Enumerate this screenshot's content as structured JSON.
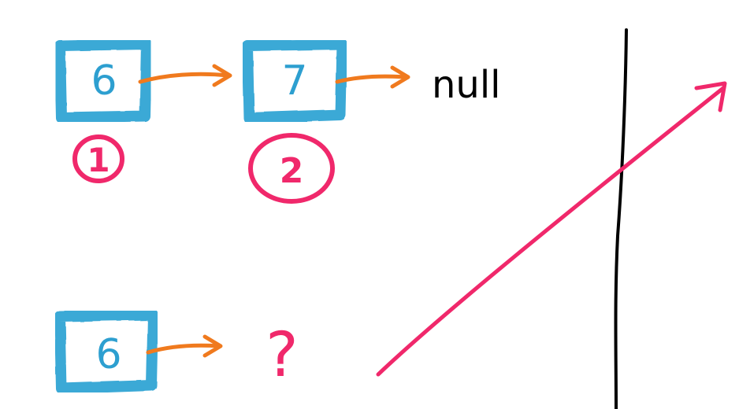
{
  "diagram": {
    "nodes": [
      {
        "id": "node-a",
        "value": "6",
        "step": "1"
      },
      {
        "id": "node-b",
        "value": "7",
        "step": "2"
      },
      {
        "id": "node-c",
        "value": "6",
        "step": ""
      }
    ],
    "null_label": "null",
    "unknown_label": "?",
    "colors": {
      "box": "#3aa9d6",
      "value_text": "#2d9fd0",
      "pointer_arrow": "#f07a1e",
      "step_marker": "#f0286b",
      "null_text": "#000000",
      "divider": "#000000"
    }
  }
}
